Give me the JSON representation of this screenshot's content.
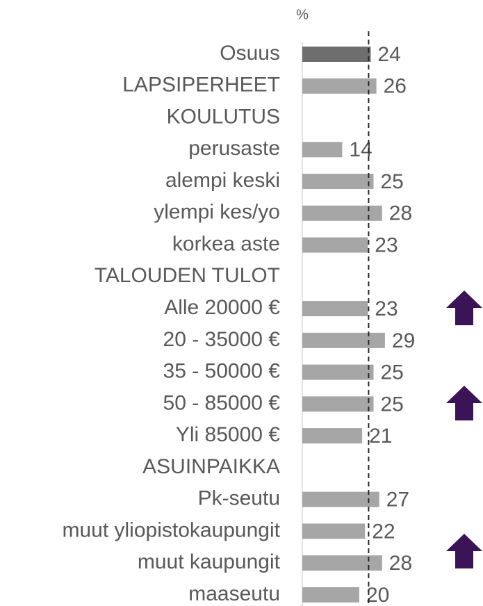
{
  "chart_data": {
    "type": "bar",
    "orientation": "horizontal",
    "unit_label": "%",
    "categories": [
      "Osuus",
      "LAPSIPERHEET",
      "KOULUTUS",
      "perusaste",
      "alempi keski",
      "ylempi kes/yo",
      "korkea aste",
      "TALOUDEN TULOT",
      "Alle 20000 €",
      "20 - 35000 €",
      "35 - 50000 €",
      "50 - 85000 €",
      "Yli 85000 €",
      "ASUINPAIKKA",
      "Pk-seutu",
      "muut yliopistokaupungit",
      "muut kaupungit",
      "maaseutu"
    ],
    "values": [
      24,
      26,
      null,
      14,
      25,
      28,
      23,
      null,
      23,
      29,
      25,
      25,
      21,
      null,
      27,
      22,
      28,
      20
    ],
    "colors": [
      "#6e6e6e",
      "#a6a6a6",
      null,
      "#a6a6a6",
      "#a6a6a6",
      "#a6a6a6",
      "#a6a6a6",
      null,
      "#a6a6a6",
      "#a6a6a6",
      "#a6a6a6",
      "#a6a6a6",
      "#a6a6a6",
      null,
      "#a6a6a6",
      "#a6a6a6",
      "#a6a6a6",
      "#a6a6a6"
    ]
  }
}
